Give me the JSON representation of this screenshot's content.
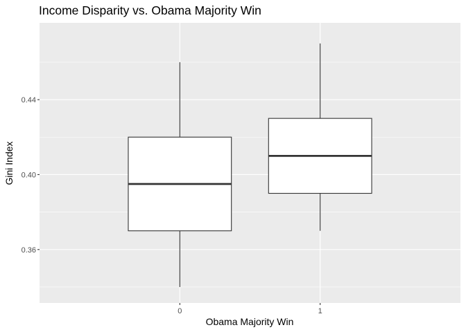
{
  "chart_data": {
    "type": "boxplot",
    "title": "Income Disparity vs. Obama Majority Win",
    "xlabel": "Obama Majority Win",
    "ylabel": "Gini Index",
    "categories": [
      "0",
      "1"
    ],
    "boxes": [
      {
        "category": "0",
        "whisker_low": 0.34,
        "q1": 0.37,
        "median": 0.395,
        "q3": 0.42,
        "whisker_high": 0.46
      },
      {
        "category": "1",
        "whisker_low": 0.37,
        "q1": 0.39,
        "median": 0.41,
        "q3": 0.43,
        "whisker_high": 0.47
      }
    ],
    "y_ticks": [
      0.36,
      0.4,
      0.44
    ],
    "y_tick_labels": [
      "0.36",
      "0.40",
      "0.44"
    ],
    "ylim": [
      0.3315,
      0.481
    ],
    "grid": true,
    "colors": {
      "panel_background": "#ebebeb",
      "grid_major": "#ffffff",
      "box_fill": "#ffffff",
      "box_line": "#333333",
      "tick_text": "#4d4d4d"
    }
  }
}
